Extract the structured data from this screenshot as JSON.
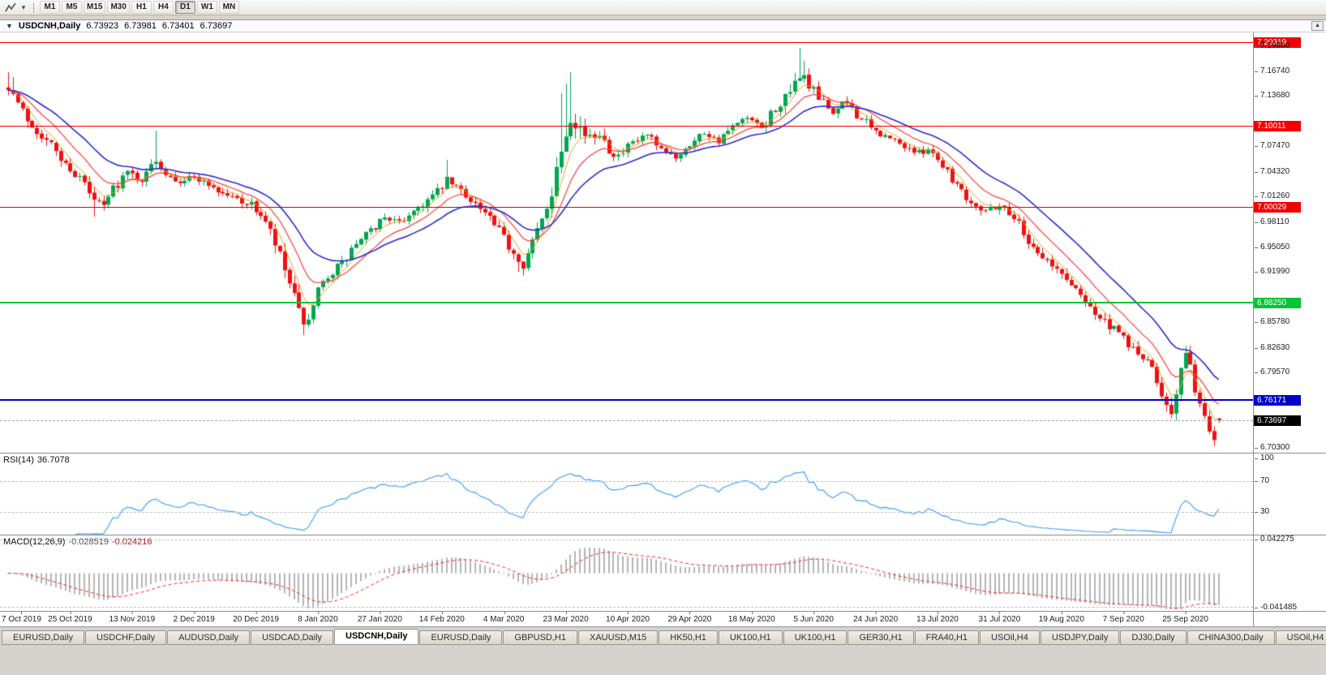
{
  "toolbar": {
    "caret_glyph": "▾",
    "timeframes": [
      {
        "label": "M1",
        "active": false
      },
      {
        "label": "M5",
        "active": false
      },
      {
        "label": "M15",
        "active": false
      },
      {
        "label": "M30",
        "active": false
      },
      {
        "label": "H1",
        "active": false
      },
      {
        "label": "H4",
        "active": false
      },
      {
        "label": "D1",
        "active": true
      },
      {
        "label": "W1",
        "active": false
      },
      {
        "label": "MN",
        "active": false
      }
    ]
  },
  "chart": {
    "title": {
      "toggle_glyph": "▼",
      "symbol": "USDCNH,Daily",
      "open": "6.73923",
      "high": "6.73981",
      "low": "6.73401",
      "close": "6.73697",
      "scroll_glyph": "▲"
    },
    "scale": {
      "top": 7.215,
      "bottom": 6.697
    },
    "price_axis": {
      "ticks": [
        {
          "label": "7.19800",
          "value": 7.198
        },
        {
          "label": "7.16740",
          "value": 7.1674
        },
        {
          "label": "7.13680",
          "value": 7.1368
        },
        {
          "label": "7.07470",
          "value": 7.0747
        },
        {
          "label": "7.04320",
          "value": 7.0432
        },
        {
          "label": "7.01260",
          "value": 7.0126
        },
        {
          "label": "6.98110",
          "value": 6.9811
        },
        {
          "label": "6.95050",
          "value": 6.9505
        },
        {
          "label": "6.91990",
          "value": 6.9199
        },
        {
          "label": "6.85780",
          "value": 6.8578
        },
        {
          "label": "6.82630",
          "value": 6.8263
        },
        {
          "label": "6.79570",
          "value": 6.7957
        },
        {
          "label": "6.70300",
          "value": 6.703
        }
      ]
    },
    "levels": [
      {
        "label": "7.20319",
        "value": 7.20319,
        "color": "#f40000",
        "width": 1
      },
      {
        "label": "7.10011",
        "value": 7.10011,
        "color": "#f40000",
        "width": 1
      },
      {
        "label": "7.00029",
        "value": 7.00029,
        "color": "#f40000",
        "width": 1
      },
      {
        "label": "6.88250",
        "value": 6.8825,
        "color": "#00c435",
        "width": 2
      },
      {
        "label": "6.76171",
        "value": 6.76171,
        "color": "#0000c8",
        "width": 2
      }
    ],
    "current_price": {
      "label": "6.73697",
      "value": 6.73697,
      "box_color": "#000000"
    },
    "candles": {
      "count": 255,
      "seed": 7,
      "up_color": "#00a651",
      "down_color": "#ee1111",
      "last_ohlc": [
        6.73923,
        6.73981,
        6.73401,
        6.73697
      ],
      "anchors": [
        [
          0,
          7.15
        ],
        [
          2,
          7.128
        ],
        [
          4,
          7.108
        ],
        [
          6,
          7.094
        ],
        [
          9,
          7.076
        ],
        [
          12,
          7.052
        ],
        [
          15,
          7.036
        ],
        [
          18,
          7.008
        ],
        [
          20,
          7.0
        ],
        [
          22,
          7.024
        ],
        [
          25,
          7.042
        ],
        [
          28,
          7.034
        ],
        [
          31,
          7.058
        ],
        [
          33,
          7.042
        ],
        [
          36,
          7.032
        ],
        [
          39,
          7.037
        ],
        [
          42,
          7.028
        ],
        [
          45,
          7.016
        ],
        [
          48,
          7.01
        ],
        [
          51,
          7.002
        ],
        [
          53,
          6.99
        ],
        [
          55,
          6.968
        ],
        [
          57,
          6.938
        ],
        [
          59,
          6.905
        ],
        [
          61,
          6.868
        ],
        [
          63,
          6.854
        ],
        [
          65,
          6.894
        ],
        [
          67,
          6.916
        ],
        [
          70,
          6.93
        ],
        [
          73,
          6.954
        ],
        [
          76,
          6.97
        ],
        [
          79,
          6.988
        ],
        [
          82,
          6.98
        ],
        [
          85,
          6.996
        ],
        [
          88,
          7.008
        ],
        [
          90,
          7.018
        ],
        [
          92,
          7.032
        ],
        [
          94,
          7.024
        ],
        [
          97,
          7.01
        ],
        [
          100,
          6.992
        ],
        [
          103,
          6.97
        ],
        [
          106,
          6.944
        ],
        [
          108,
          6.93
        ],
        [
          110,
          6.956
        ],
        [
          112,
          6.984
        ],
        [
          114,
          7.02
        ],
        [
          116,
          7.075
        ],
        [
          118,
          7.115
        ],
        [
          120,
          7.098
        ],
        [
          122,
          7.082
        ],
        [
          124,
          7.094
        ],
        [
          126,
          7.072
        ],
        [
          128,
          7.062
        ],
        [
          131,
          7.078
        ],
        [
          134,
          7.088
        ],
        [
          137,
          7.068
        ],
        [
          140,
          7.062
        ],
        [
          143,
          7.078
        ],
        [
          146,
          7.092
        ],
        [
          149,
          7.082
        ],
        [
          152,
          7.098
        ],
        [
          155,
          7.108
        ],
        [
          158,
          7.096
        ],
        [
          161,
          7.122
        ],
        [
          164,
          7.136
        ],
        [
          166,
          7.165
        ],
        [
          168,
          7.15
        ],
        [
          170,
          7.132
        ],
        [
          173,
          7.118
        ],
        [
          176,
          7.128
        ],
        [
          179,
          7.108
        ],
        [
          182,
          7.092
        ],
        [
          185,
          7.084
        ],
        [
          188,
          7.075
        ],
        [
          191,
          7.066
        ],
        [
          193,
          7.073
        ],
        [
          196,
          7.052
        ],
        [
          199,
          7.028
        ],
        [
          202,
          7.006
        ],
        [
          205,
          6.996
        ],
        [
          208,
          7.002
        ],
        [
          211,
          6.988
        ],
        [
          214,
          6.958
        ],
        [
          217,
          6.938
        ],
        [
          220,
          6.922
        ],
        [
          223,
          6.905
        ],
        [
          226,
          6.886
        ],
        [
          229,
          6.862
        ],
        [
          232,
          6.848
        ],
        [
          234,
          6.838
        ],
        [
          236,
          6.824
        ],
        [
          238,
          6.814
        ],
        [
          240,
          6.8
        ],
        [
          242,
          6.77
        ],
        [
          244,
          6.75
        ],
        [
          245,
          6.768
        ],
        [
          246,
          6.798
        ],
        [
          247,
          6.818
        ],
        [
          248,
          6.8
        ],
        [
          249,
          6.776
        ],
        [
          250,
          6.757
        ],
        [
          251,
          6.74
        ],
        [
          252,
          6.724
        ],
        [
          253,
          6.716
        ],
        [
          254,
          6.737
        ]
      ],
      "vol_anchors": [
        [
          0,
          0.016
        ],
        [
          20,
          0.013
        ],
        [
          40,
          0.01
        ],
        [
          52,
          0.012
        ],
        [
          56,
          0.02
        ],
        [
          62,
          0.022
        ],
        [
          68,
          0.013
        ],
        [
          80,
          0.01
        ],
        [
          88,
          0.014
        ],
        [
          94,
          0.012
        ],
        [
          104,
          0.013
        ],
        [
          112,
          0.018
        ],
        [
          117,
          0.03
        ],
        [
          122,
          0.02
        ],
        [
          130,
          0.012
        ],
        [
          144,
          0.01
        ],
        [
          158,
          0.012
        ],
        [
          166,
          0.022
        ],
        [
          172,
          0.013
        ],
        [
          186,
          0.01
        ],
        [
          200,
          0.011
        ],
        [
          216,
          0.012
        ],
        [
          230,
          0.013
        ],
        [
          240,
          0.014
        ],
        [
          244,
          0.018
        ],
        [
          247,
          0.016
        ],
        [
          252,
          0.012
        ],
        [
          254,
          0.01
        ]
      ],
      "spike_highs": {
        "0": 7.166,
        "1": 7.16,
        "31": 7.094,
        "92": 7.058,
        "116": 7.14,
        "117": 7.152,
        "118": 7.166,
        "166": 7.196,
        "167": 7.18
      },
      "spike_lows": {
        "18": 6.988,
        "62": 6.842,
        "107": 6.92,
        "243": 6.748,
        "244": 6.742,
        "253": 6.705
      }
    },
    "moving_averages": [
      {
        "period": 5,
        "color": "#d9a520",
        "width": 1
      },
      {
        "period": 11,
        "color": "#ff3b3b",
        "width": 1.2
      },
      {
        "period": 22,
        "color": "#2b2bd0",
        "width": 1.6
      }
    ]
  },
  "rsi": {
    "label_name": "RSI(14)",
    "label_value": "36.7078",
    "period": 14,
    "line_color": "#3399ff",
    "ticks": [
      {
        "label": "100",
        "value": 100
      },
      {
        "label": "70",
        "value": 70
      },
      {
        "label": "30",
        "value": 30
      }
    ],
    "dashed_levels": [
      70,
      30
    ]
  },
  "macd": {
    "label_name": "MACD(12,26,9)",
    "value_main": "-0.028519",
    "value_signal": "-0.024216",
    "fast": 12,
    "slow": 26,
    "signal": 9,
    "hist_color": "#b4b4b4",
    "signal_color": "#ff2020",
    "range": 0.0452,
    "axis_labels": [
      {
        "label": "0.042275",
        "value": 0.042275
      },
      {
        "label": "-0.041485",
        "value": -0.041485
      }
    ],
    "dashed_levels": [
      0.04,
      -0.04
    ]
  },
  "time_axis": {
    "step": 13,
    "labels": [
      "7 Oct 2019",
      "25 Oct 2019",
      "13 Nov 2019",
      "2 Dec 2019",
      "20 Dec 2019",
      "8 Jan 2020",
      "27 Jan 2020",
      "14 Feb 2020",
      "4 Mar 2020",
      "23 Mar 2020",
      "10 Apr 2020",
      "29 Apr 2020",
      "18 May 2020",
      "5 Jun 2020",
      "24 Jun 2020",
      "13 Jul 2020",
      "31 Jul 2020",
      "19 Aug 2020",
      "7 Sep 2020",
      "25 Sep 2020"
    ]
  },
  "tabs": [
    {
      "label": "EURUSD,Daily",
      "active": false
    },
    {
      "label": "USDCHF,Daily",
      "active": false
    },
    {
      "label": "AUDUSD,Daily",
      "active": false
    },
    {
      "label": "USDCAD,Daily",
      "active": false
    },
    {
      "label": "USDCNH,Daily",
      "active": true
    },
    {
      "label": "EURUSD,Daily",
      "active": false
    },
    {
      "label": "GBPUSD,H1",
      "active": false
    },
    {
      "label": "XAUUSD,M15",
      "active": false
    },
    {
      "label": "HK50,H1",
      "active": false
    },
    {
      "label": "UK100,H1",
      "active": false
    },
    {
      "label": "UK100,H1",
      "active": false
    },
    {
      "label": "GER30,H1",
      "active": false
    },
    {
      "label": "FRA40,H1",
      "active": false
    },
    {
      "label": "USOil,H4",
      "active": false
    },
    {
      "label": "USDJPY,Daily",
      "active": false
    },
    {
      "label": "DJ30,Daily",
      "active": false
    },
    {
      "label": "CHINA300,Daily",
      "active": false
    },
    {
      "label": "USOil,H4",
      "active": false
    }
  ]
}
